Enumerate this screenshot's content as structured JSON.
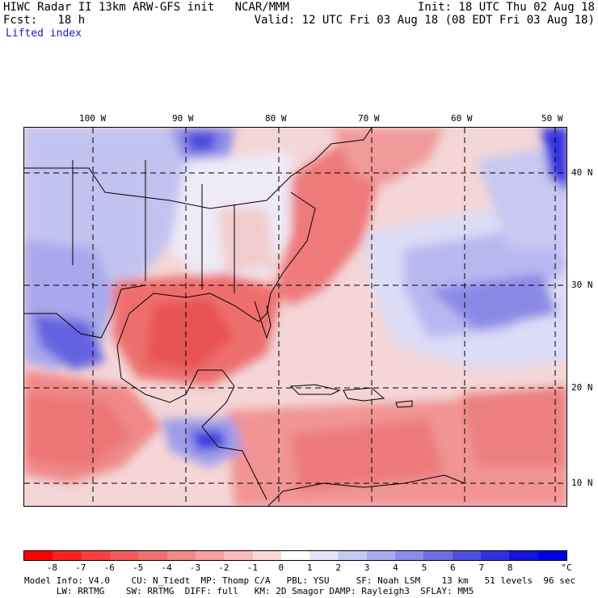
{
  "header": {
    "left1": "HIWC Radar II 13km ARW-GFS init   NCAR/MMM",
    "left2": "Fcst:   18 h",
    "field": "Lifted index",
    "right1": "Init: 18 UTC Thu 02 Aug 18",
    "right2": "Valid: 12 UTC Fri 03 Aug 18 (08 EDT Fri 03 Aug 18)"
  },
  "axes": {
    "lon_labels": [
      "100 W",
      "90 W",
      "80 W",
      "70 W",
      "60 W",
      "50 W"
    ],
    "lat_labels": [
      "40 N",
      "30 N",
      "20 N",
      "10 N"
    ]
  },
  "colorbar": {
    "ticks": [
      "-8",
      "-7",
      "-6",
      "-5",
      "-4",
      "-3",
      "-2",
      "-1",
      "0",
      "1",
      "2",
      "3",
      "4",
      "5",
      "6",
      "7",
      "8"
    ],
    "unit": "°C",
    "colors": [
      "#ff0000",
      "#ff2222",
      "#f84040",
      "#f45a5a",
      "#f07070",
      "#f28888",
      "#f6a0a0",
      "#f9baba",
      "#fcd6d6",
      "#ffffff",
      "#e6e6fa",
      "#c8c8f4",
      "#aaaaf0",
      "#8c8cea",
      "#6e6ee4",
      "#5050e0",
      "#3030e0",
      "#1414dc",
      "#0000e6"
    ]
  },
  "footer": {
    "line1": "Model Info: V4.0    CU: N_Tiedt  MP: Thomp C/A   PBL: YSU     SF: Noah LSM    13 km   51 levels  96 sec",
    "line2": "      LW: RRTMG    SW: RRTMG  DIFF: full   KM: 2D Smagor DAMP: Rayleigh3  SFLAY: MM5"
  },
  "map_colors": {
    "ocean_base": "#f4d4d4",
    "strong_red": "#ef6b6b",
    "mid_red": "#f49a9a",
    "light_blue": "#d2d2f4",
    "mid_blue": "#9a9aea",
    "deep_blue": "#3636dc"
  }
}
